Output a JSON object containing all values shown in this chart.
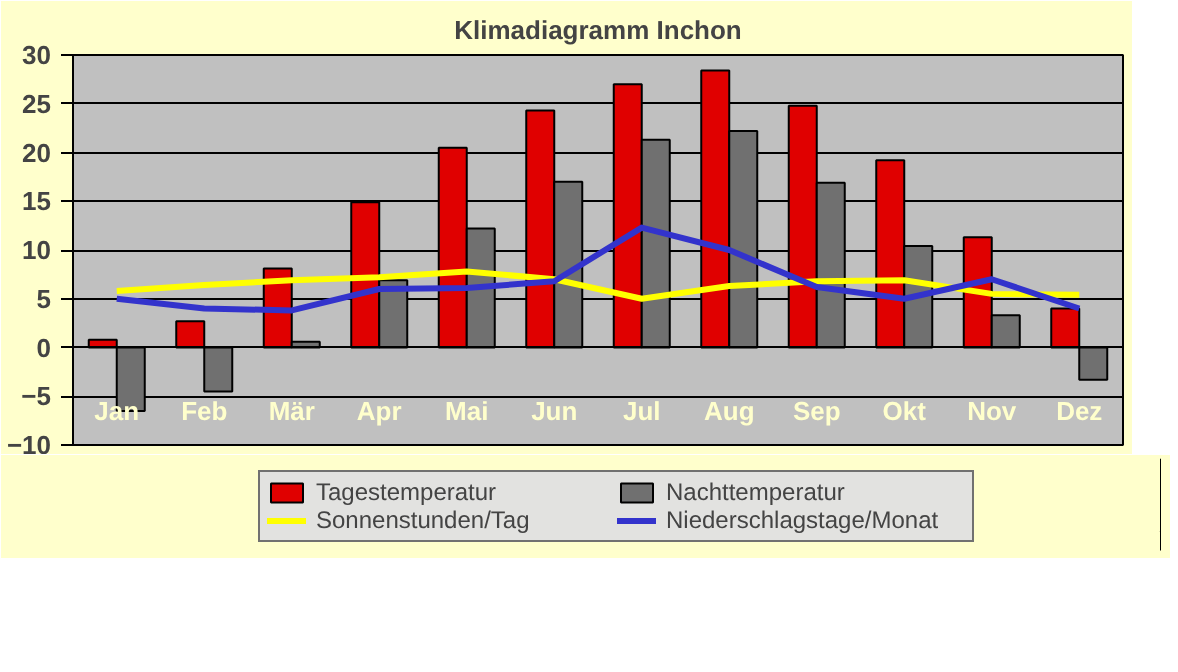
{
  "chart_data": {
    "type": "bar",
    "title": "Klimadiagramm Inchon",
    "categories": [
      "Jan",
      "Feb",
      "Mär",
      "Apr",
      "Mai",
      "Jun",
      "Jul",
      "Aug",
      "Sep",
      "Okt",
      "Nov",
      "Dez"
    ],
    "series": [
      {
        "name": "Tagestemperatur",
        "color": "#e00000",
        "values": [
          0.8,
          2.7,
          8.1,
          14.9,
          20.5,
          24.3,
          27.0,
          28.4,
          24.8,
          19.2,
          11.3,
          4.0
        ]
      },
      {
        "name": "Nachttemperatur",
        "color": "#707070",
        "values": [
          -6.5,
          -4.5,
          0.6,
          6.9,
          12.2,
          17.0,
          21.3,
          22.2,
          16.9,
          10.4,
          3.3,
          -3.3
        ]
      },
      {
        "name": "Sonnenstunden/Tag",
        "type": "line",
        "color": "#ffff00",
        "values": [
          5.8,
          6.4,
          6.9,
          7.2,
          7.8,
          7.0,
          5.0,
          6.3,
          6.8,
          6.9,
          5.5,
          5.4
        ]
      },
      {
        "name": "Niederschlagstage/Monat",
        "type": "line",
        "color": "#3333cc",
        "values": [
          5.0,
          4.0,
          3.8,
          6.0,
          6.1,
          6.8,
          12.3,
          10.0,
          6.2,
          5.0,
          7.0,
          4.0
        ]
      }
    ],
    "ylim": [
      -10,
      30
    ],
    "yticks": [
      -10,
      -5,
      0,
      5,
      10,
      15,
      20,
      25,
      30
    ],
    "grid": "y",
    "legend": "bottom"
  }
}
